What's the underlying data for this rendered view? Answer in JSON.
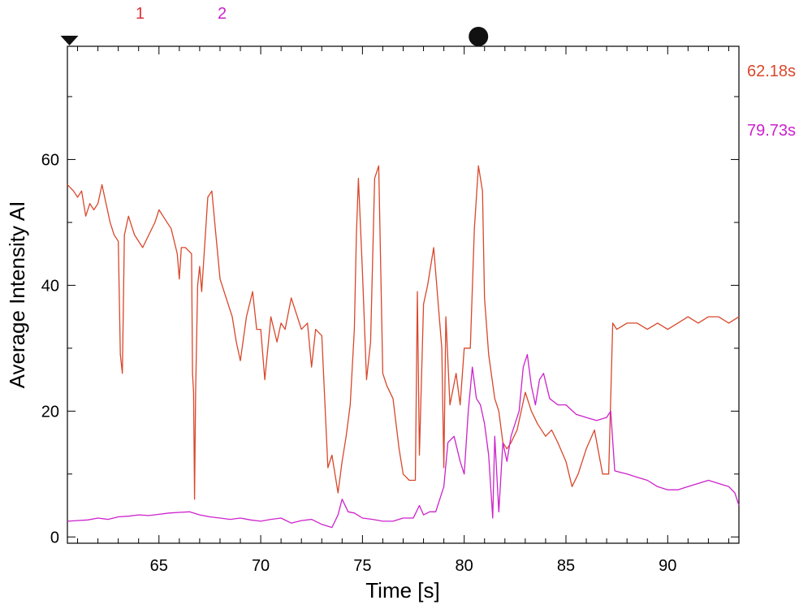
{
  "chart_data": {
    "type": "line",
    "title": "",
    "xlabel": "Time [s]",
    "ylabel": "Average Intensity AI",
    "xlim": [
      60.5,
      93.5
    ],
    "ylim": [
      -1,
      78
    ],
    "xticks": [
      65,
      70,
      75,
      80,
      85,
      90
    ],
    "yticks": [
      0,
      20,
      40,
      60
    ],
    "xtick_labels": [
      "65",
      "70",
      "75",
      "80",
      "85",
      "90"
    ],
    "ytick_labels": [
      "0",
      "20",
      "40",
      "60"
    ],
    "grid": false,
    "top_markers": [
      {
        "label": "1",
        "x": 63.5,
        "color": "#e0303a"
      },
      {
        "label": "2",
        "x": 67.8,
        "color": "#cc22cc"
      }
    ],
    "event_markers": [
      {
        "shape": "triangle-down",
        "x": 60.6
      },
      {
        "shape": "circle",
        "x": 80.7
      }
    ],
    "right_labels": [
      {
        "text": "62.18s",
        "color": "#d9472b"
      },
      {
        "text": "79.73s",
        "color": "#cc22cc"
      }
    ],
    "series": [
      {
        "color": "#d9472b",
        "x": [
          60.5,
          60.8,
          61.0,
          61.2,
          61.4,
          61.6,
          61.8,
          62.0,
          62.2,
          62.4,
          62.6,
          62.8,
          63.0,
          63.1,
          63.2,
          63.3,
          63.5,
          63.8,
          64.2,
          64.5,
          64.8,
          65.0,
          65.2,
          65.6,
          65.9,
          66.0,
          66.1,
          66.3,
          66.6,
          66.65,
          66.7,
          66.75,
          66.8,
          66.9,
          67.0,
          67.1,
          67.2,
          67.4,
          67.6,
          67.8,
          68.0,
          68.3,
          68.6,
          68.8,
          69.0,
          69.3,
          69.6,
          69.8,
          70.0,
          70.2,
          70.5,
          70.8,
          71.0,
          71.2,
          71.5,
          71.8,
          72.0,
          72.3,
          72.5,
          72.7,
          73.0,
          73.3,
          73.5,
          73.8,
          74.0,
          74.2,
          74.4,
          74.6,
          74.7,
          74.8,
          75.0,
          75.2,
          75.4,
          75.6,
          75.8,
          76.0,
          76.2,
          76.5,
          76.8,
          77.0,
          77.3,
          77.6,
          77.7,
          77.8,
          78.0,
          78.2,
          78.5,
          78.7,
          78.9,
          79.0,
          79.1,
          79.3,
          79.6,
          79.8,
          80.0,
          80.3,
          80.5,
          80.7,
          80.9,
          81.0,
          81.2,
          81.5,
          81.7,
          81.9,
          82.1,
          82.3,
          82.6,
          83.0,
          83.3,
          83.6,
          84.0,
          84.3,
          84.6,
          85.0,
          85.3,
          85.6,
          86.0,
          86.4,
          86.8,
          87.1,
          87.3,
          87.5,
          88.0,
          88.5,
          89.0,
          89.5,
          90.0,
          90.5,
          91.0,
          91.5,
          92.0,
          92.5,
          93.0,
          93.5
        ],
        "values": [
          56,
          55,
          54,
          55,
          51,
          53,
          52,
          53,
          56,
          53,
          50,
          48,
          47,
          29,
          26,
          48,
          51,
          48,
          46,
          48,
          50,
          52,
          51,
          49,
          45,
          41,
          46,
          46,
          45,
          26,
          23,
          6,
          23,
          40,
          43,
          39,
          44,
          54,
          55,
          48,
          41,
          38,
          35,
          31,
          28,
          35,
          39,
          33,
          33,
          25,
          35,
          31,
          34,
          33,
          38,
          35,
          33,
          34,
          27,
          33,
          32,
          11,
          13,
          7,
          12,
          16,
          21,
          33,
          48,
          57,
          42,
          25,
          31,
          57,
          59,
          26,
          24,
          22,
          14,
          10,
          9,
          9,
          39,
          13,
          37,
          40,
          46,
          38,
          30,
          11,
          35,
          21,
          26,
          21,
          30,
          30,
          49,
          59,
          55,
          38,
          29,
          22,
          20,
          15,
          14,
          15,
          17,
          23,
          20,
          18,
          16,
          17,
          15,
          12,
          8,
          10,
          14,
          17,
          10,
          10,
          34,
          33,
          34,
          34,
          33,
          34,
          33,
          34,
          35,
          34,
          35,
          35,
          34,
          35
        ]
      },
      {
        "color": "#cc22cc",
        "x": [
          60.5,
          61.0,
          61.5,
          62.0,
          62.5,
          63.0,
          63.5,
          64.0,
          64.5,
          65.0,
          65.5,
          66.0,
          66.5,
          67.0,
          67.5,
          68.0,
          68.5,
          69.0,
          69.5,
          70.0,
          70.5,
          71.0,
          71.5,
          72.0,
          72.5,
          73.0,
          73.5,
          73.8,
          74.0,
          74.3,
          74.6,
          75.0,
          75.5,
          76.0,
          76.5,
          77.0,
          77.5,
          77.8,
          78.0,
          78.3,
          78.6,
          79.0,
          79.2,
          79.5,
          79.8,
          80.0,
          80.2,
          80.4,
          80.6,
          80.8,
          81.0,
          81.2,
          81.4,
          81.5,
          81.7,
          81.9,
          82.1,
          82.3,
          82.5,
          82.7,
          82.9,
          83.1,
          83.3,
          83.5,
          83.7,
          83.9,
          84.2,
          84.6,
          85.0,
          85.5,
          86.0,
          86.5,
          87.0,
          87.2,
          87.4,
          88.0,
          88.5,
          89.0,
          89.5,
          90.0,
          90.5,
          91.0,
          91.5,
          92.0,
          92.5,
          93.0,
          93.3,
          93.5
        ],
        "values": [
          2.5,
          2.6,
          2.7,
          3.0,
          2.8,
          3.2,
          3.3,
          3.5,
          3.4,
          3.6,
          3.8,
          3.9,
          4.0,
          3.5,
          3.2,
          3.0,
          2.8,
          3.0,
          2.7,
          2.5,
          2.8,
          3.0,
          2.2,
          2.6,
          2.8,
          2.0,
          1.5,
          3.5,
          6.0,
          4.0,
          3.8,
          3.0,
          2.8,
          2.5,
          2.5,
          3.0,
          3.0,
          5.0,
          3.5,
          4.0,
          4.0,
          8.0,
          15.0,
          16.0,
          12.0,
          10.0,
          20.0,
          27.0,
          22.0,
          21.0,
          18.0,
          13.0,
          3.0,
          16.0,
          4.0,
          15.0,
          12.0,
          16.0,
          18.0,
          20.0,
          27.0,
          29.0,
          24.0,
          21.0,
          25.0,
          26.0,
          22.0,
          21.0,
          21.0,
          19.5,
          19.0,
          18.5,
          19.0,
          20.0,
          10.5,
          10.0,
          9.5,
          9.0,
          8.0,
          7.5,
          7.5,
          8.0,
          8.5,
          9.0,
          8.5,
          8.0,
          7.0,
          5.0
        ]
      }
    ]
  }
}
